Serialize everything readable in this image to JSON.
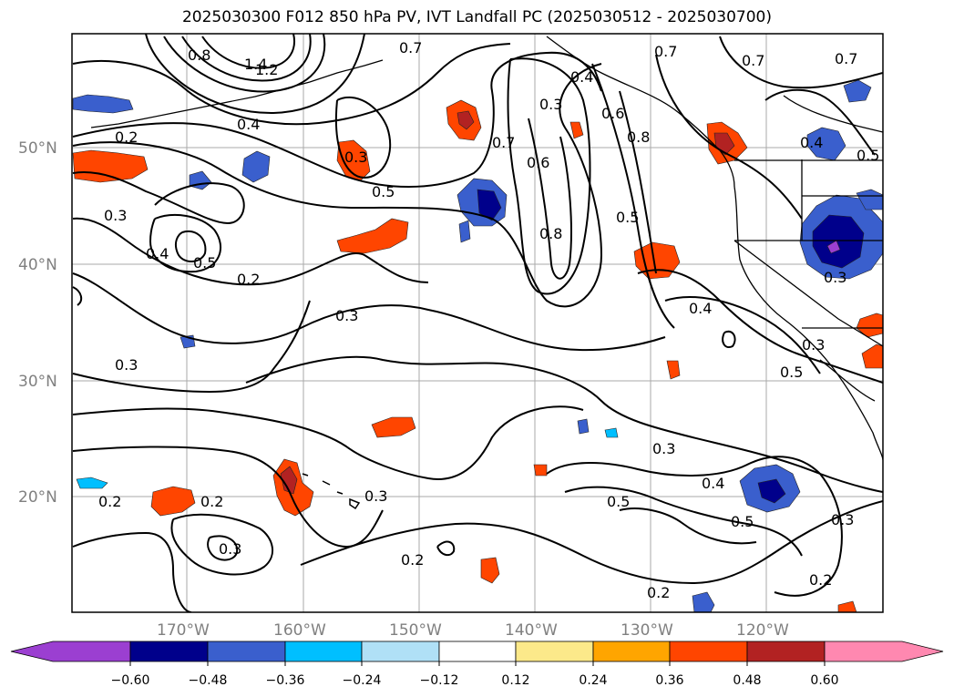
{
  "title": "2025030300 F012 850 hPa PV, IVT Landfall PC (2025030512 - 2025030700)",
  "lon_labels": [
    "170°W",
    "160°W",
    "150°W",
    "140°W",
    "130°W",
    "120°W"
  ],
  "lat_labels": [
    "50°N",
    "40°N",
    "30°N",
    "20°N"
  ],
  "colorbar": {
    "ticks": [
      "−0.60",
      "−0.48",
      "−0.36",
      "−0.24",
      "−0.12",
      "0.12",
      "0.24",
      "0.36",
      "0.48",
      "0.60"
    ],
    "colors": [
      "#9b3fd1",
      "#00008b",
      "#3a5fcd",
      "#00bfff",
      "#b0e0f6",
      "#ffffff",
      "#fce98a",
      "#ffa500",
      "#ff4500",
      "#b22222",
      "#ff88b0"
    ]
  },
  "contour_labels": [
    "1.4",
    "1.2",
    "0.8",
    "0.7",
    "0.7",
    "0.7",
    "0.7",
    "0.2",
    "0.4",
    "0.3",
    "0.5",
    "0.3",
    "0.4",
    "0.5",
    "0.2",
    "0.3",
    "0.3",
    "0.7",
    "0.6",
    "0.3",
    "0.4",
    "0.6",
    "0.8",
    "0.8",
    "0.5",
    "0.4",
    "0.5",
    "0.4",
    "0.3",
    "0.3",
    "0.5",
    "0.3",
    "0.4",
    "0.5",
    "0.5",
    "0.2",
    "0.3",
    "0.2",
    "0.3",
    "0.2",
    "0.2",
    "0.2",
    "0.3"
  ],
  "colors": {
    "frame": "#000000",
    "grid": "#aaaaaa",
    "contour": "#000000"
  }
}
